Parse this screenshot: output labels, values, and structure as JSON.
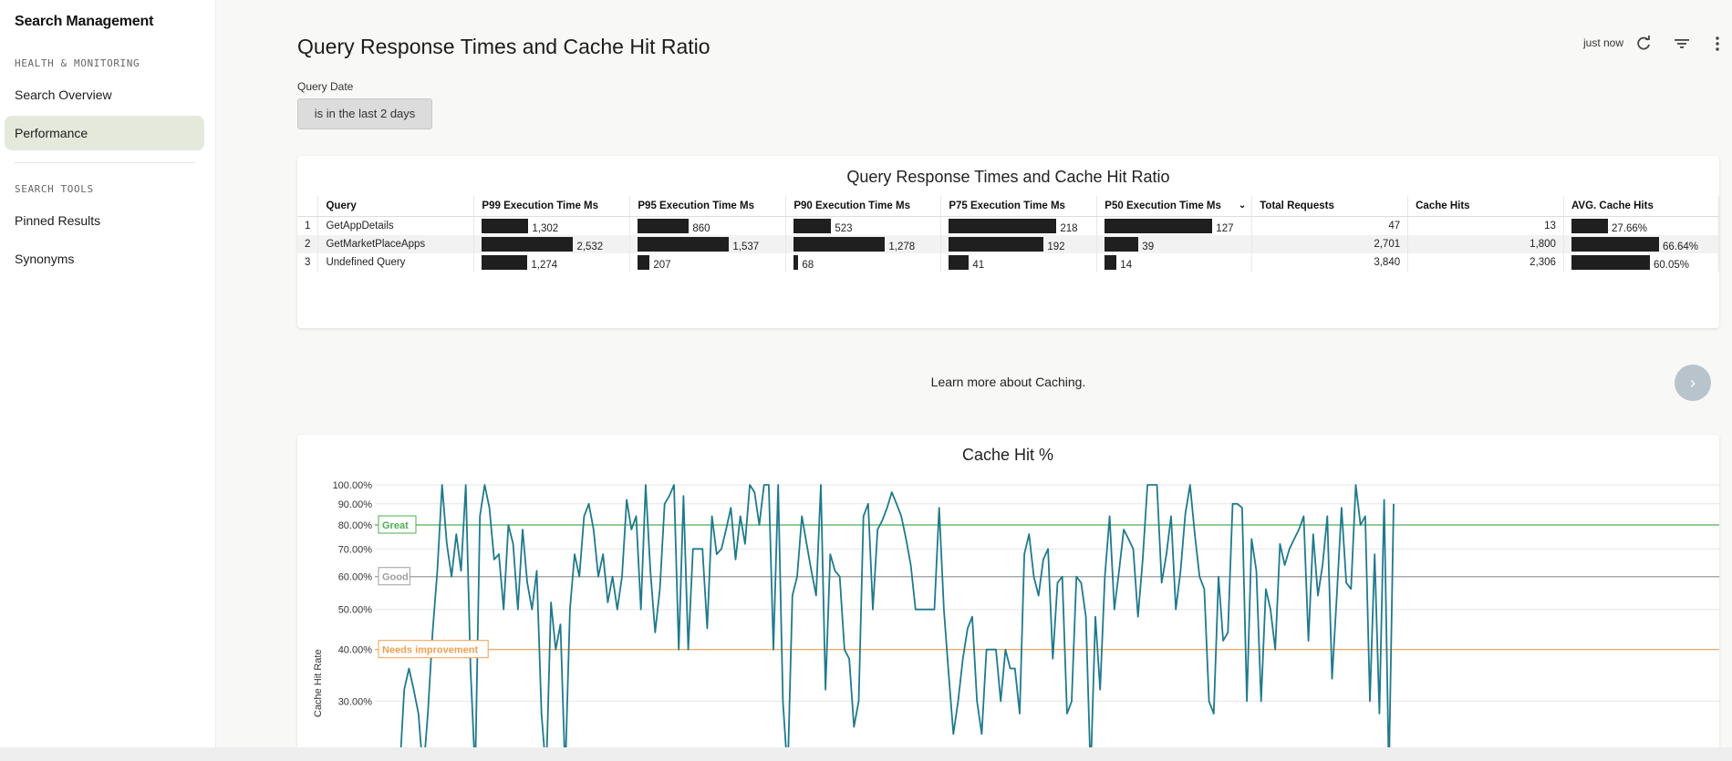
{
  "sidebar": {
    "app_title": "Search Management",
    "section_health": "HEALTH & MONITORING",
    "section_tools": "SEARCH TOOLS",
    "items": [
      {
        "label": "Search Overview",
        "active": false
      },
      {
        "label": "Performance",
        "active": true
      },
      {
        "label": "Pinned Results",
        "active": false
      },
      {
        "label": "Synonyms",
        "active": false
      }
    ]
  },
  "header": {
    "title": "Query Response Times and Cache Hit Ratio",
    "refresh_status": "just now"
  },
  "filter": {
    "label": "Query Date",
    "value": "is in the last 2 days"
  },
  "table_card": {
    "title": "Query Response Times and Cache Hit Ratio",
    "columns": [
      "Query",
      "P99 Execution Time Ms",
      "P95 Execution Time Ms",
      "P90 Execution Time Ms",
      "P75 Execution Time Ms",
      "P50 Execution Time Ms",
      "Total Requests",
      "Cache Hits",
      "AVG. Cache Hits"
    ],
    "rows": [
      {
        "idx": "1",
        "query": "GetAppDetails",
        "p99": "1,302",
        "p95": "860",
        "p90": "523",
        "p75": "218",
        "p50": "127",
        "total": "47",
        "hits": "13",
        "avg": "27.66%"
      },
      {
        "idx": "2",
        "query": "GetMarketPlaceApps",
        "p99": "2,532",
        "p95": "1,537",
        "p90": "1,278",
        "p75": "192",
        "p50": "39",
        "total": "2,701",
        "hits": "1,800",
        "avg": "66.64%"
      },
      {
        "idx": "3",
        "query": "Undefined Query",
        "p99": "1,274",
        "p95": "207",
        "p90": "68",
        "p75": "41",
        "p50": "14",
        "total": "3,840",
        "hits": "2,306",
        "avg": "60.05%"
      }
    ],
    "bar_fractions": {
      "p99": [
        0.51,
        1.0,
        0.5
      ],
      "p95": [
        0.56,
        1.0,
        0.13
      ],
      "p90": [
        0.41,
        1.0,
        0.05
      ],
      "p75": [
        1.0,
        0.88,
        0.19
      ],
      "p50": [
        1.0,
        0.31,
        0.11
      ],
      "avg": [
        0.42,
        1.0,
        0.9
      ]
    }
  },
  "learn_more": "Learn more about Caching.",
  "chart_data": {
    "type": "line",
    "title": "Cache Hit %",
    "ylabel": "Cache Hit Rate",
    "y_ticks": [
      "100.00%",
      "90.00%",
      "80.00%",
      "70.00%",
      "60.00%",
      "50.00%",
      "40.00%",
      "30.00%"
    ],
    "y_scale": "log",
    "ylim": [
      25,
      100
    ],
    "reference_lines": [
      {
        "label": "Great",
        "value": 80,
        "color": "#4caf50"
      },
      {
        "label": "Good",
        "value": 60,
        "color": "#9e9e9e"
      },
      {
        "label": "Needs improvement",
        "value": 40,
        "color": "#f0a050"
      }
    ],
    "series": [
      {
        "color": "#1f7a8c",
        "values": [
          20,
          32,
          36,
          32,
          28,
          20,
          28,
          44,
          62,
          100,
          72,
          60,
          76,
          62,
          100,
          36,
          20,
          84,
          100,
          88,
          66,
          68,
          50,
          80,
          72,
          50,
          78,
          58,
          50,
          62,
          28,
          20,
          52,
          40,
          46,
          20,
          50,
          68,
          60,
          84,
          90,
          78,
          60,
          68,
          52,
          60,
          50,
          60,
          92,
          78,
          84,
          50,
          100,
          62,
          44,
          56,
          90,
          94,
          100,
          40,
          94,
          40,
          70,
          70,
          70,
          45,
          84,
          68,
          70,
          78,
          88,
          66,
          84,
          72,
          100,
          96,
          80,
          100,
          100,
          40,
          100,
          30,
          20,
          54,
          60,
          84,
          72,
          62,
          54,
          100,
          32,
          68,
          62,
          60,
          40,
          38,
          26,
          30,
          84,
          90,
          50,
          78,
          82,
          88,
          96,
          90,
          84,
          74,
          64,
          50,
          50,
          50,
          50,
          50,
          88,
          50,
          35,
          25,
          30,
          38,
          45,
          48,
          30,
          25,
          40,
          40,
          40,
          30,
          40,
          36,
          36,
          28,
          68,
          76,
          60,
          54,
          66,
          70,
          38,
          58,
          60,
          28,
          30,
          60,
          58,
          48,
          20,
          48,
          32,
          60,
          84,
          50,
          62,
          78,
          74,
          70,
          48,
          66,
          100,
          100,
          100,
          58,
          68,
          84,
          50,
          62,
          85,
          100,
          76,
          60,
          56,
          30,
          28,
          60,
          42,
          44,
          90,
          90,
          88,
          30,
          74,
          62,
          30,
          56,
          50,
          40,
          72,
          64,
          70,
          74,
          78,
          84,
          42,
          76,
          54,
          64,
          84,
          34,
          54,
          88,
          58,
          56,
          100,
          80,
          84,
          30,
          68,
          28,
          92,
          20,
          90
        ]
      }
    ]
  }
}
